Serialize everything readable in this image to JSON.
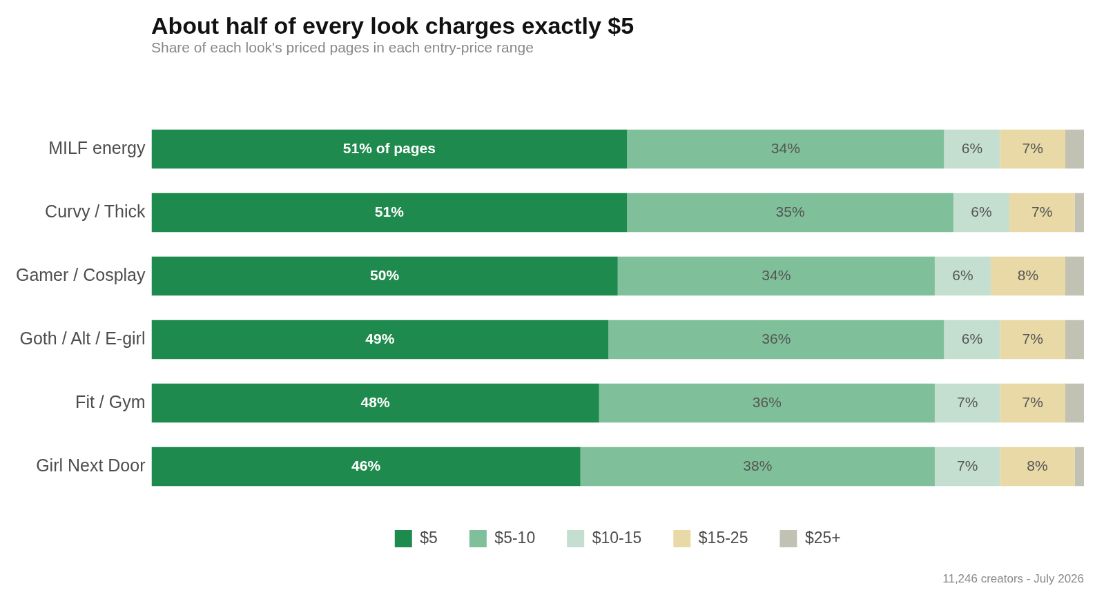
{
  "chart_data": {
    "type": "bar",
    "orientation": "horizontal",
    "stacked": true,
    "title": "About half of every look charges exactly $5",
    "subtitle": "Share of each look's priced pages in each entry-price range",
    "categories": [
      "MILF energy",
      "Curvy / Thick",
      "Gamer / Cosplay",
      "Goth / Alt / E-girl",
      "Fit / Gym",
      "Girl Next Door"
    ],
    "series": [
      {
        "name": "$5",
        "color": "#1f8a4e",
        "values": [
          51,
          51,
          50,
          49,
          48,
          46
        ],
        "value_labels": [
          "51% of pages",
          "51%",
          "50%",
          "49%",
          "48%",
          "46%"
        ]
      },
      {
        "name": "$5-10",
        "color": "#7fc09a",
        "values": [
          34,
          35,
          34,
          36,
          36,
          38
        ],
        "value_labels": [
          "34%",
          "35%",
          "34%",
          "36%",
          "36%",
          "38%"
        ]
      },
      {
        "name": "$10-15",
        "color": "#c4dfd0",
        "values": [
          6,
          6,
          6,
          6,
          7,
          7
        ],
        "value_labels": [
          "6%",
          "6%",
          "6%",
          "6%",
          "7%",
          "7%"
        ]
      },
      {
        "name": "$15-25",
        "color": "#e8d9a6",
        "values": [
          7,
          7,
          8,
          7,
          7,
          8
        ],
        "value_labels": [
          "7%",
          "7%",
          "8%",
          "7%",
          "7%",
          "8%"
        ]
      },
      {
        "name": "$25+",
        "color": "#c2c2b4",
        "values": [
          2,
          1,
          2,
          2,
          2,
          1
        ]
      }
    ],
    "xlim": [
      0,
      100
    ],
    "tick_labels": "y",
    "legend": "bottom",
    "annotations": [
      "11,246 creators - July 2026"
    ]
  }
}
